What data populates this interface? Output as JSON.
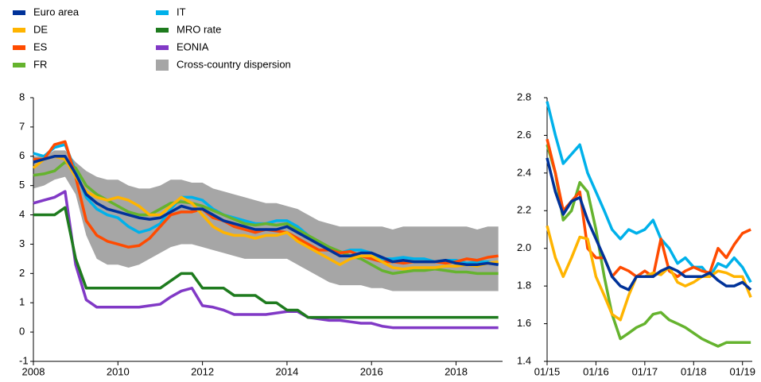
{
  "chart_data": [
    {
      "type": "line",
      "x": [
        2008,
        2008.25,
        2008.5,
        2008.75,
        2009,
        2009.25,
        2009.5,
        2009.75,
        2010,
        2010.25,
        2010.5,
        2010.75,
        2011,
        2011.25,
        2011.5,
        2011.75,
        2012,
        2012.25,
        2012.5,
        2012.75,
        2013,
        2013.25,
        2013.5,
        2013.75,
        2014,
        2014.25,
        2014.5,
        2014.75,
        2015,
        2015.25,
        2015.5,
        2015.75,
        2016,
        2016.25,
        2016.5,
        2016.75,
        2017,
        2017.25,
        2017.5,
        2017.75,
        2018,
        2018.25,
        2018.5,
        2018.75,
        2019
      ],
      "xlim": [
        2008,
        2019.1
      ],
      "ylim": [
        -1,
        8
      ],
      "xticks": [
        2008,
        2010,
        2012,
        2014,
        2016,
        2018
      ],
      "yticks": [
        -1,
        0,
        1,
        2,
        3,
        4,
        5,
        6,
        7,
        8
      ],
      "series": [
        {
          "name": "Euro area",
          "color": "#003299",
          "values": [
            5.8,
            5.9,
            6.0,
            6.0,
            5.4,
            4.7,
            4.4,
            4.2,
            4.1,
            4.0,
            3.9,
            3.85,
            3.9,
            4.1,
            4.3,
            4.2,
            4.2,
            4.0,
            3.8,
            3.7,
            3.6,
            3.5,
            3.5,
            3.5,
            3.6,
            3.4,
            3.2,
            3.0,
            2.8,
            2.6,
            2.6,
            2.7,
            2.7,
            2.55,
            2.4,
            2.45,
            2.4,
            2.4,
            2.4,
            2.45,
            2.35,
            2.3,
            2.3,
            2.35,
            2.3
          ]
        },
        {
          "name": "DE",
          "color": "#ffb400",
          "values": [
            5.6,
            5.9,
            6.0,
            5.9,
            5.3,
            4.8,
            4.6,
            4.5,
            4.6,
            4.5,
            4.3,
            4.0,
            4.0,
            4.3,
            4.6,
            4.4,
            4.0,
            3.6,
            3.4,
            3.3,
            3.3,
            3.2,
            3.3,
            3.3,
            3.4,
            3.1,
            2.9,
            2.7,
            2.5,
            2.3,
            2.5,
            2.6,
            2.6,
            2.4,
            2.2,
            2.15,
            2.2,
            2.2,
            2.2,
            2.25,
            2.25,
            2.3,
            2.25,
            2.35,
            2.4
          ]
        },
        {
          "name": "ES",
          "color": "#ff4b00",
          "values": [
            5.9,
            5.9,
            6.4,
            6.5,
            5.3,
            3.8,
            3.3,
            3.1,
            3.0,
            2.9,
            2.95,
            3.2,
            3.6,
            4.0,
            4.1,
            4.1,
            4.2,
            3.9,
            3.8,
            3.6,
            3.5,
            3.4,
            3.5,
            3.45,
            3.4,
            3.2,
            3.0,
            2.8,
            2.8,
            2.7,
            2.75,
            2.6,
            2.5,
            2.4,
            2.4,
            2.35,
            2.4,
            2.4,
            2.4,
            2.35,
            2.4,
            2.5,
            2.45,
            2.55,
            2.6
          ]
        },
        {
          "name": "FR",
          "color": "#65b32e",
          "values": [
            5.35,
            5.4,
            5.5,
            5.8,
            5.6,
            5.0,
            4.7,
            4.5,
            4.3,
            4.1,
            4.0,
            4.0,
            4.2,
            4.4,
            4.45,
            4.4,
            4.3,
            4.15,
            4.0,
            3.85,
            3.7,
            3.65,
            3.7,
            3.65,
            3.7,
            3.5,
            3.3,
            3.1,
            2.9,
            2.75,
            2.6,
            2.5,
            2.3,
            2.1,
            2.0,
            2.05,
            2.1,
            2.1,
            2.15,
            2.1,
            2.05,
            2.05,
            2.0,
            2.0,
            2.0
          ]
        },
        {
          "name": "IT",
          "color": "#00b1ea",
          "values": [
            6.1,
            6.0,
            6.3,
            6.4,
            5.5,
            4.6,
            4.2,
            4.0,
            3.9,
            3.6,
            3.4,
            3.5,
            3.7,
            4.2,
            4.6,
            4.6,
            4.5,
            4.2,
            4.0,
            3.9,
            3.8,
            3.7,
            3.7,
            3.8,
            3.8,
            3.6,
            3.3,
            3.0,
            2.8,
            2.7,
            2.8,
            2.8,
            2.7,
            2.5,
            2.5,
            2.55,
            2.5,
            2.5,
            2.4,
            2.45,
            2.45,
            2.35,
            2.4,
            2.4,
            2.3
          ]
        },
        {
          "name": "MRO rate",
          "color": "#1e7b1e",
          "values": [
            4.0,
            4.0,
            4.0,
            4.25,
            2.5,
            1.5,
            1.5,
            1.5,
            1.5,
            1.5,
            1.5,
            1.5,
            1.5,
            1.75,
            2.0,
            2.0,
            1.5,
            1.5,
            1.5,
            1.25,
            1.25,
            1.25,
            1.0,
            1.0,
            0.75,
            0.75,
            0.5,
            0.5,
            0.5,
            0.5,
            0.5,
            0.5,
            0.5,
            0.5,
            0.5,
            0.5,
            0.5,
            0.5,
            0.5,
            0.5,
            0.5,
            0.5,
            0.5,
            0.5,
            0.5
          ]
        },
        {
          "name": "EONIA",
          "color": "#8139c6",
          "values": [
            4.4,
            4.5,
            4.6,
            4.8,
            2.3,
            1.1,
            0.85,
            0.85,
            0.85,
            0.85,
            0.85,
            0.9,
            0.95,
            1.2,
            1.4,
            1.5,
            0.9,
            0.85,
            0.75,
            0.6,
            0.6,
            0.6,
            0.6,
            0.65,
            0.7,
            0.7,
            0.5,
            0.45,
            0.4,
            0.4,
            0.35,
            0.3,
            0.3,
            0.2,
            0.15,
            0.15,
            0.15,
            0.15,
            0.15,
            0.15,
            0.15,
            0.15,
            0.15,
            0.15,
            0.15
          ]
        },
        {
          "name": "Cross-country dispersion",
          "color": "#a6a6a6",
          "upper": [
            6.0,
            6.0,
            6.2,
            6.2,
            5.8,
            5.5,
            5.3,
            5.2,
            5.2,
            5.0,
            4.9,
            4.9,
            5.0,
            5.2,
            5.2,
            5.1,
            5.1,
            4.9,
            4.8,
            4.7,
            4.6,
            4.5,
            4.4,
            4.4,
            4.3,
            4.2,
            4.0,
            3.8,
            3.7,
            3.6,
            3.6,
            3.6,
            3.6,
            3.6,
            3.5,
            3.6,
            3.6,
            3.6,
            3.6,
            3.6,
            3.6,
            3.6,
            3.5,
            3.6,
            3.6
          ],
          "lower": [
            4.9,
            5.0,
            5.2,
            5.3,
            4.7,
            3.3,
            2.5,
            2.3,
            2.3,
            2.2,
            2.3,
            2.5,
            2.7,
            2.9,
            3.0,
            3.0,
            2.9,
            2.8,
            2.7,
            2.6,
            2.5,
            2.5,
            2.5,
            2.5,
            2.5,
            2.3,
            2.1,
            1.9,
            1.7,
            1.6,
            1.6,
            1.6,
            1.5,
            1.5,
            1.4,
            1.4,
            1.4,
            1.4,
            1.4,
            1.4,
            1.4,
            1.4,
            1.4,
            1.4,
            1.4
          ]
        }
      ]
    },
    {
      "type": "line",
      "x": [
        2015,
        2015.17,
        2015.33,
        2015.5,
        2015.67,
        2015.83,
        2016,
        2016.17,
        2016.33,
        2016.5,
        2016.67,
        2016.83,
        2017,
        2017.17,
        2017.33,
        2017.5,
        2017.67,
        2017.83,
        2018,
        2018.17,
        2018.33,
        2018.5,
        2018.67,
        2018.83,
        2019,
        2019.17
      ],
      "xlim": [
        2015,
        2019.2
      ],
      "ylim": [
        1.4,
        2.8
      ],
      "xticks": [
        {
          "value": 2015,
          "label": "01/15"
        },
        {
          "value": 2016,
          "label": "01/16"
        },
        {
          "value": 2017,
          "label": "01/17"
        },
        {
          "value": 2018,
          "label": "01/18"
        },
        {
          "value": 2019,
          "label": "01/19"
        }
      ],
      "yticks": [
        1.4,
        1.6,
        1.8,
        {
          "value": 2,
          "label": "2.0"
        },
        2.2,
        2.4,
        2.6,
        2.8
      ],
      "series": [
        {
          "name": "Euro area",
          "color": "#003299",
          "values": [
            2.48,
            2.3,
            2.18,
            2.25,
            2.27,
            2.15,
            2.05,
            1.95,
            1.85,
            1.8,
            1.78,
            1.85,
            1.85,
            1.85,
            1.88,
            1.9,
            1.88,
            1.85,
            1.85,
            1.85,
            1.87,
            1.83,
            1.8,
            1.8,
            1.82,
            1.78
          ]
        },
        {
          "name": "DE",
          "color": "#ffb400",
          "values": [
            2.12,
            1.95,
            1.85,
            1.95,
            2.06,
            2.05,
            1.85,
            1.75,
            1.65,
            1.62,
            1.75,
            1.85,
            1.85,
            1.87,
            1.86,
            1.9,
            1.82,
            1.8,
            1.82,
            1.85,
            1.85,
            1.88,
            1.87,
            1.85,
            1.85,
            1.74
          ]
        },
        {
          "name": "ES",
          "color": "#ff4b00",
          "values": [
            2.58,
            2.4,
            2.2,
            2.25,
            2.3,
            2.0,
            1.95,
            1.95,
            1.85,
            1.9,
            1.88,
            1.85,
            1.88,
            1.85,
            2.05,
            1.88,
            1.85,
            1.88,
            1.9,
            1.88,
            1.87,
            2.0,
            1.95,
            2.02,
            2.08,
            2.1
          ]
        },
        {
          "name": "FR",
          "color": "#65b32e",
          "values": [
            2.55,
            2.4,
            2.15,
            2.2,
            2.35,
            2.3,
            2.1,
            1.85,
            1.65,
            1.52,
            1.55,
            1.58,
            1.6,
            1.65,
            1.66,
            1.62,
            1.6,
            1.58,
            1.55,
            1.52,
            1.5,
            1.48,
            1.5,
            1.5,
            1.5,
            1.5
          ]
        },
        {
          "name": "IT",
          "color": "#00b1ea",
          "values": [
            2.78,
            2.6,
            2.45,
            2.5,
            2.55,
            2.4,
            2.3,
            2.2,
            2.1,
            2.05,
            2.1,
            2.08,
            2.1,
            2.15,
            2.05,
            2.0,
            1.92,
            1.95,
            1.9,
            1.9,
            1.85,
            1.92,
            1.9,
            1.95,
            1.9,
            1.82
          ]
        }
      ]
    }
  ]
}
